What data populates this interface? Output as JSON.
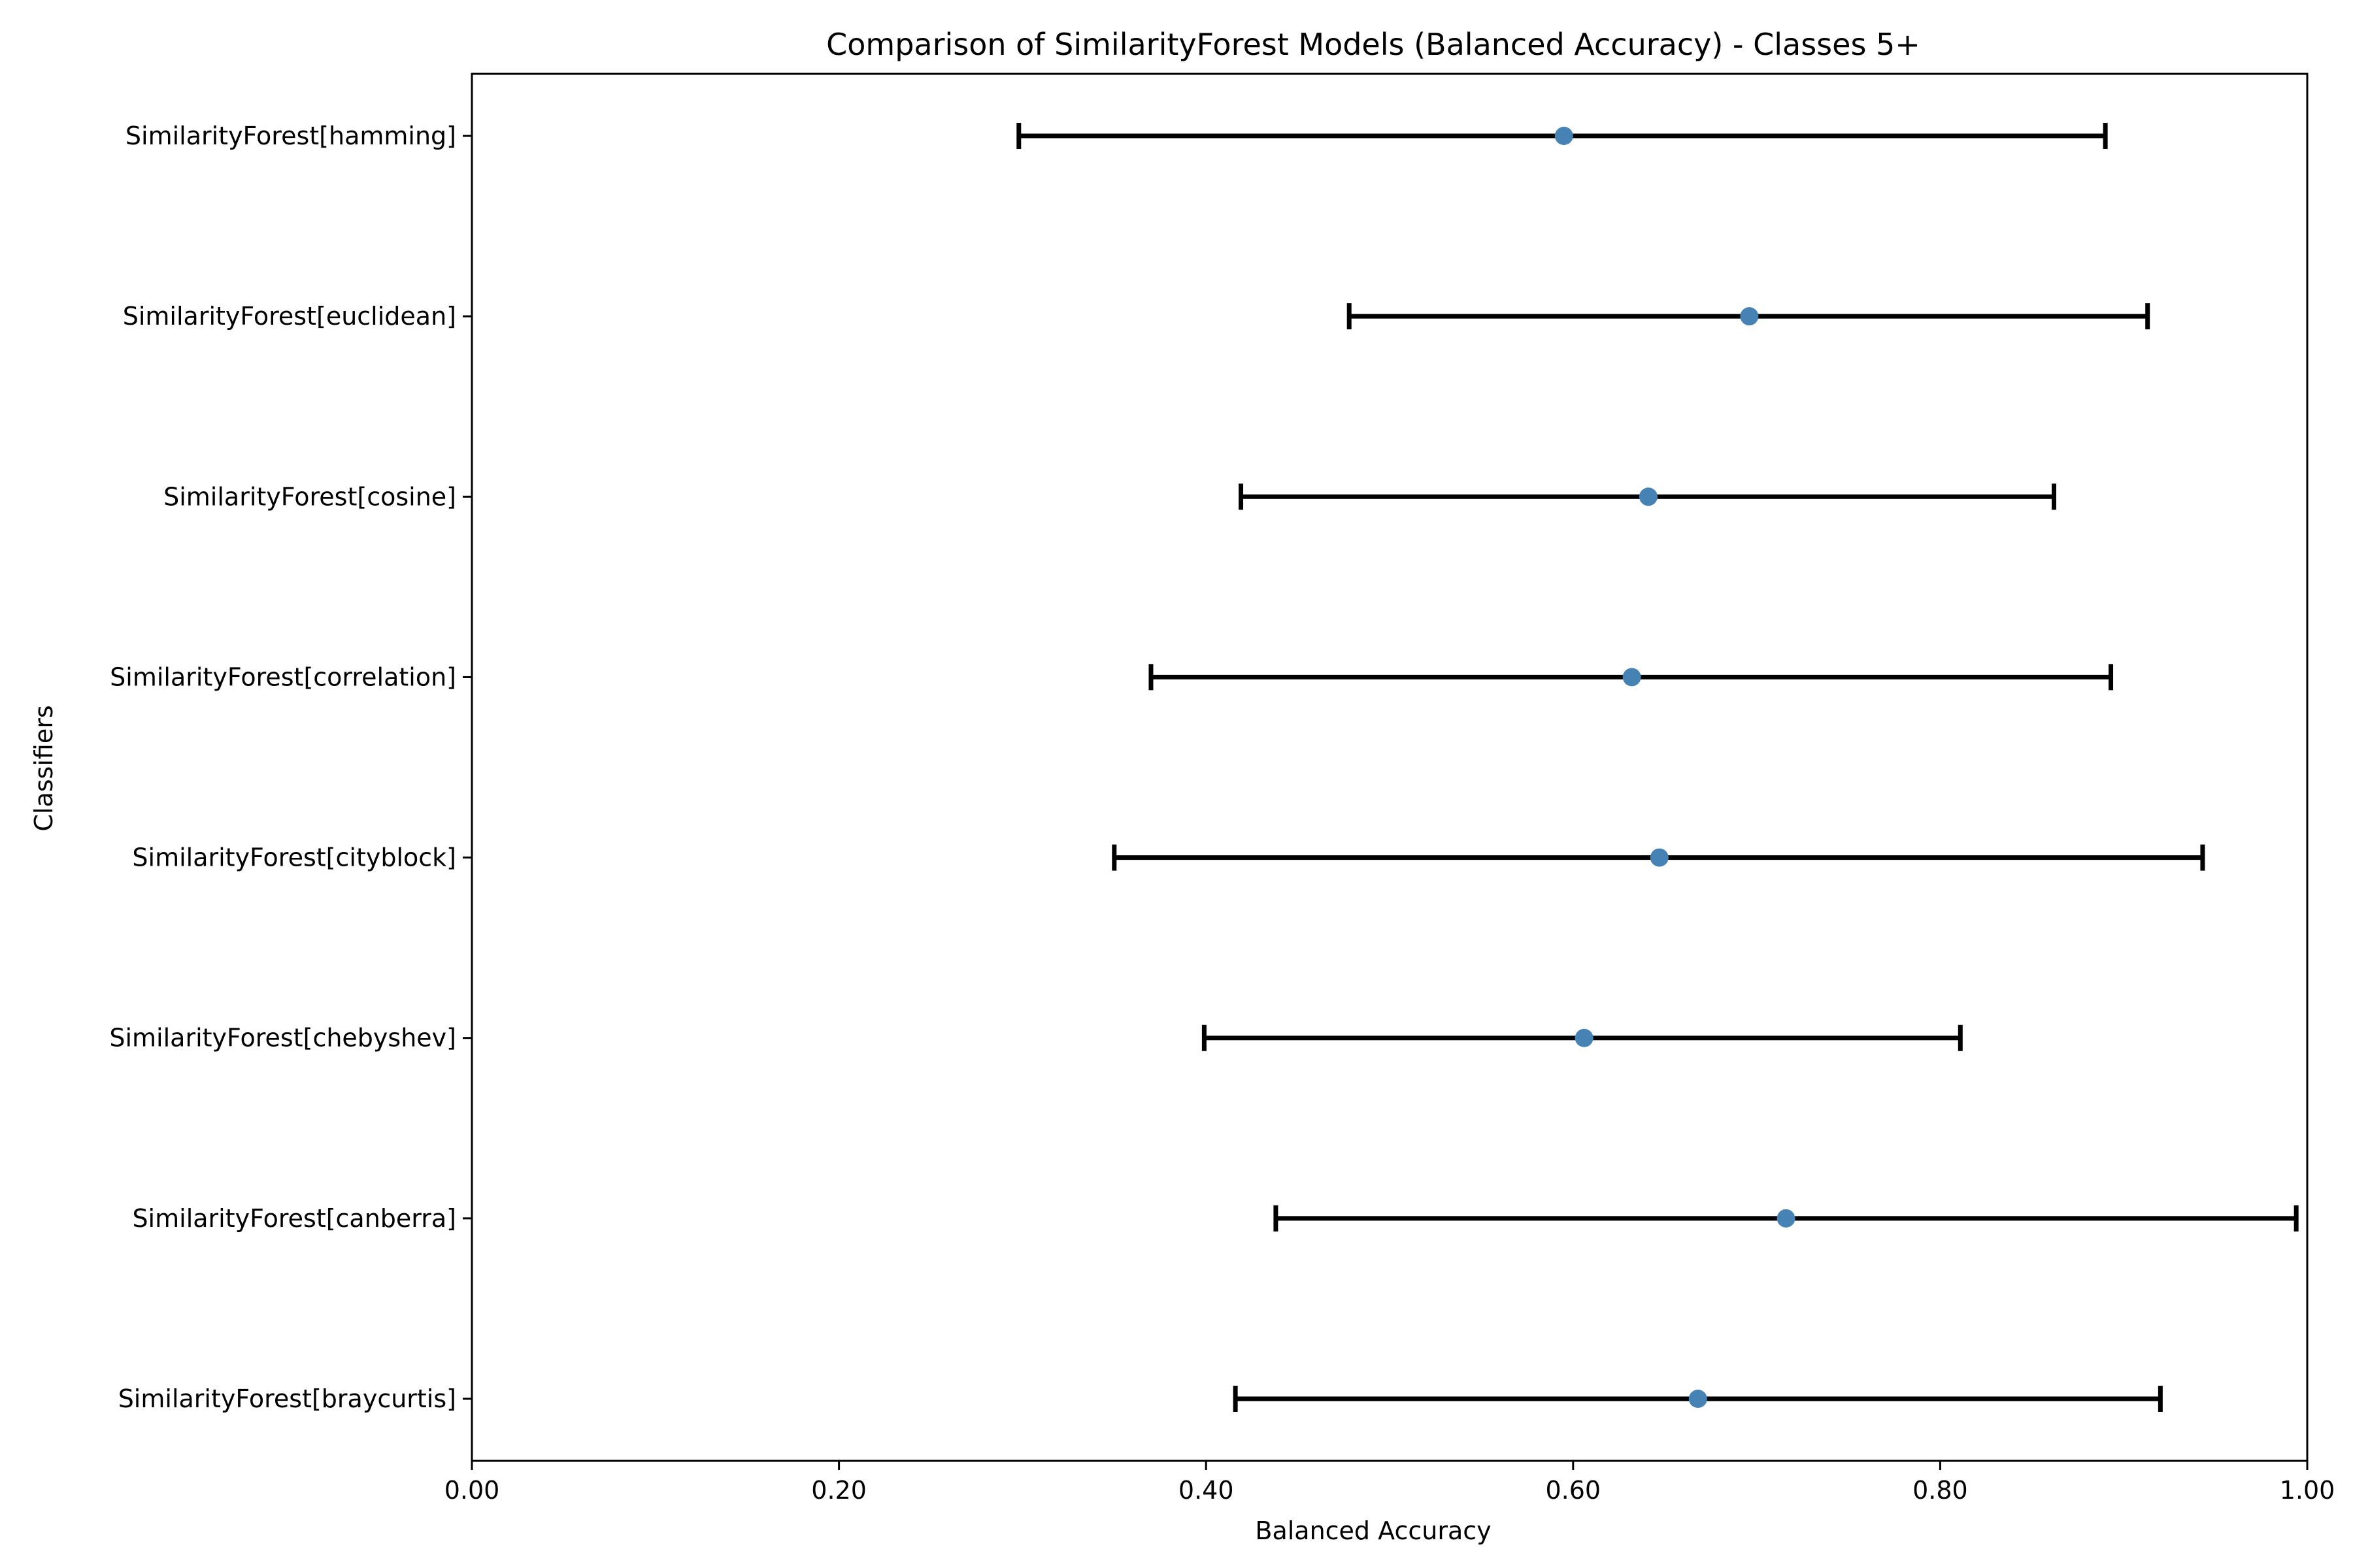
{
  "colors": {
    "point": "#4682b4",
    "errorbar": "#000000",
    "axes": "#000000",
    "background": "#ffffff"
  },
  "chart_data": {
    "type": "scatter",
    "title": "Comparison of SimilarityForest Models (Balanced Accuracy) - Classes 5+",
    "xlabel": "Balanced Accuracy",
    "ylabel": "Classifiers",
    "xlim": [
      0.0,
      1.0
    ],
    "x_ticks": [
      0.0,
      0.2,
      0.4,
      0.6,
      0.8,
      1.0
    ],
    "x_tick_labels": [
      "0.00",
      "0.20",
      "0.40",
      "0.60",
      "0.80",
      "1.00"
    ],
    "grid": false,
    "categories": [
      "SimilarityForest[hamming]",
      "SimilarityForest[euclidean]",
      "SimilarityForest[cosine]",
      "SimilarityForest[correlation]",
      "SimilarityForest[cityblock]",
      "SimilarityForest[chebyshev]",
      "SimilarityForest[canberra]",
      "SimilarityForest[braycurtis]"
    ],
    "values": [
      0.595,
      0.696,
      0.641,
      0.632,
      0.647,
      0.606,
      0.716,
      0.668
    ],
    "lower": [
      0.298,
      0.478,
      0.419,
      0.37,
      0.35,
      0.399,
      0.438,
      0.416
    ],
    "upper": [
      0.89,
      0.913,
      0.862,
      0.893,
      0.943,
      0.811,
      0.994,
      0.92
    ]
  }
}
